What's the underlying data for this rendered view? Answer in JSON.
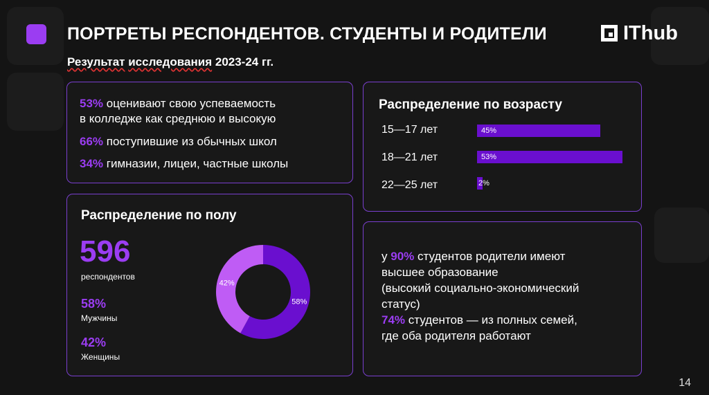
{
  "header": {
    "title": "ПОРТРЕТЫ РЕСПОНДЕНТОВ. СТУДЕНТЫ И РОДИТЕЛИ",
    "subtitle_part1": "Результат",
    "subtitle_part2": "исследования",
    "subtitle_part3": "2023-24 гг.",
    "brand": "IThub"
  },
  "stats": [
    {
      "pct": "53%",
      "text": "оценивают свою успеваемость",
      "text2": "в колледже как среднюю и высокую"
    },
    {
      "pct": "66%",
      "text": "поступившие из обычных школ"
    },
    {
      "pct": "34%",
      "text": "гимназии, лицеи, частные школы"
    }
  ],
  "age": {
    "heading": "Распределение по возрасту",
    "groups": [
      {
        "label": "15—17 лет",
        "value": 45,
        "display": "45%"
      },
      {
        "label": "18—21 лет",
        "value": 53,
        "display": "53%"
      },
      {
        "label": "22—25 лет",
        "value": 2,
        "display": "2%"
      }
    ]
  },
  "gender": {
    "heading": "Распределение по полу",
    "total": "596",
    "total_label": "респондентов",
    "male_pct": "58%",
    "male_label": "Мужчины",
    "female_pct": "42%",
    "female_label": "Женщины"
  },
  "chart_data": {
    "type": "pie",
    "categories": [
      "Мужчины",
      "Женщины"
    ],
    "values": [
      58,
      42
    ],
    "labels": [
      "58%",
      "42%"
    ],
    "colors": [
      "#6a0fcf",
      "#bf5cf5"
    ]
  },
  "info": {
    "l1_pre": "у",
    "l1_pct": "90%",
    "l1_post": "студентов родители имеют",
    "l2": "высшее образование",
    "l3": "(высокий социально-экономический",
    "l4": "статус)",
    "l5_pct": "74%",
    "l5_post": "студентов — из полных семей,",
    "l6": "где оба родителя работают"
  },
  "page_number": "14"
}
